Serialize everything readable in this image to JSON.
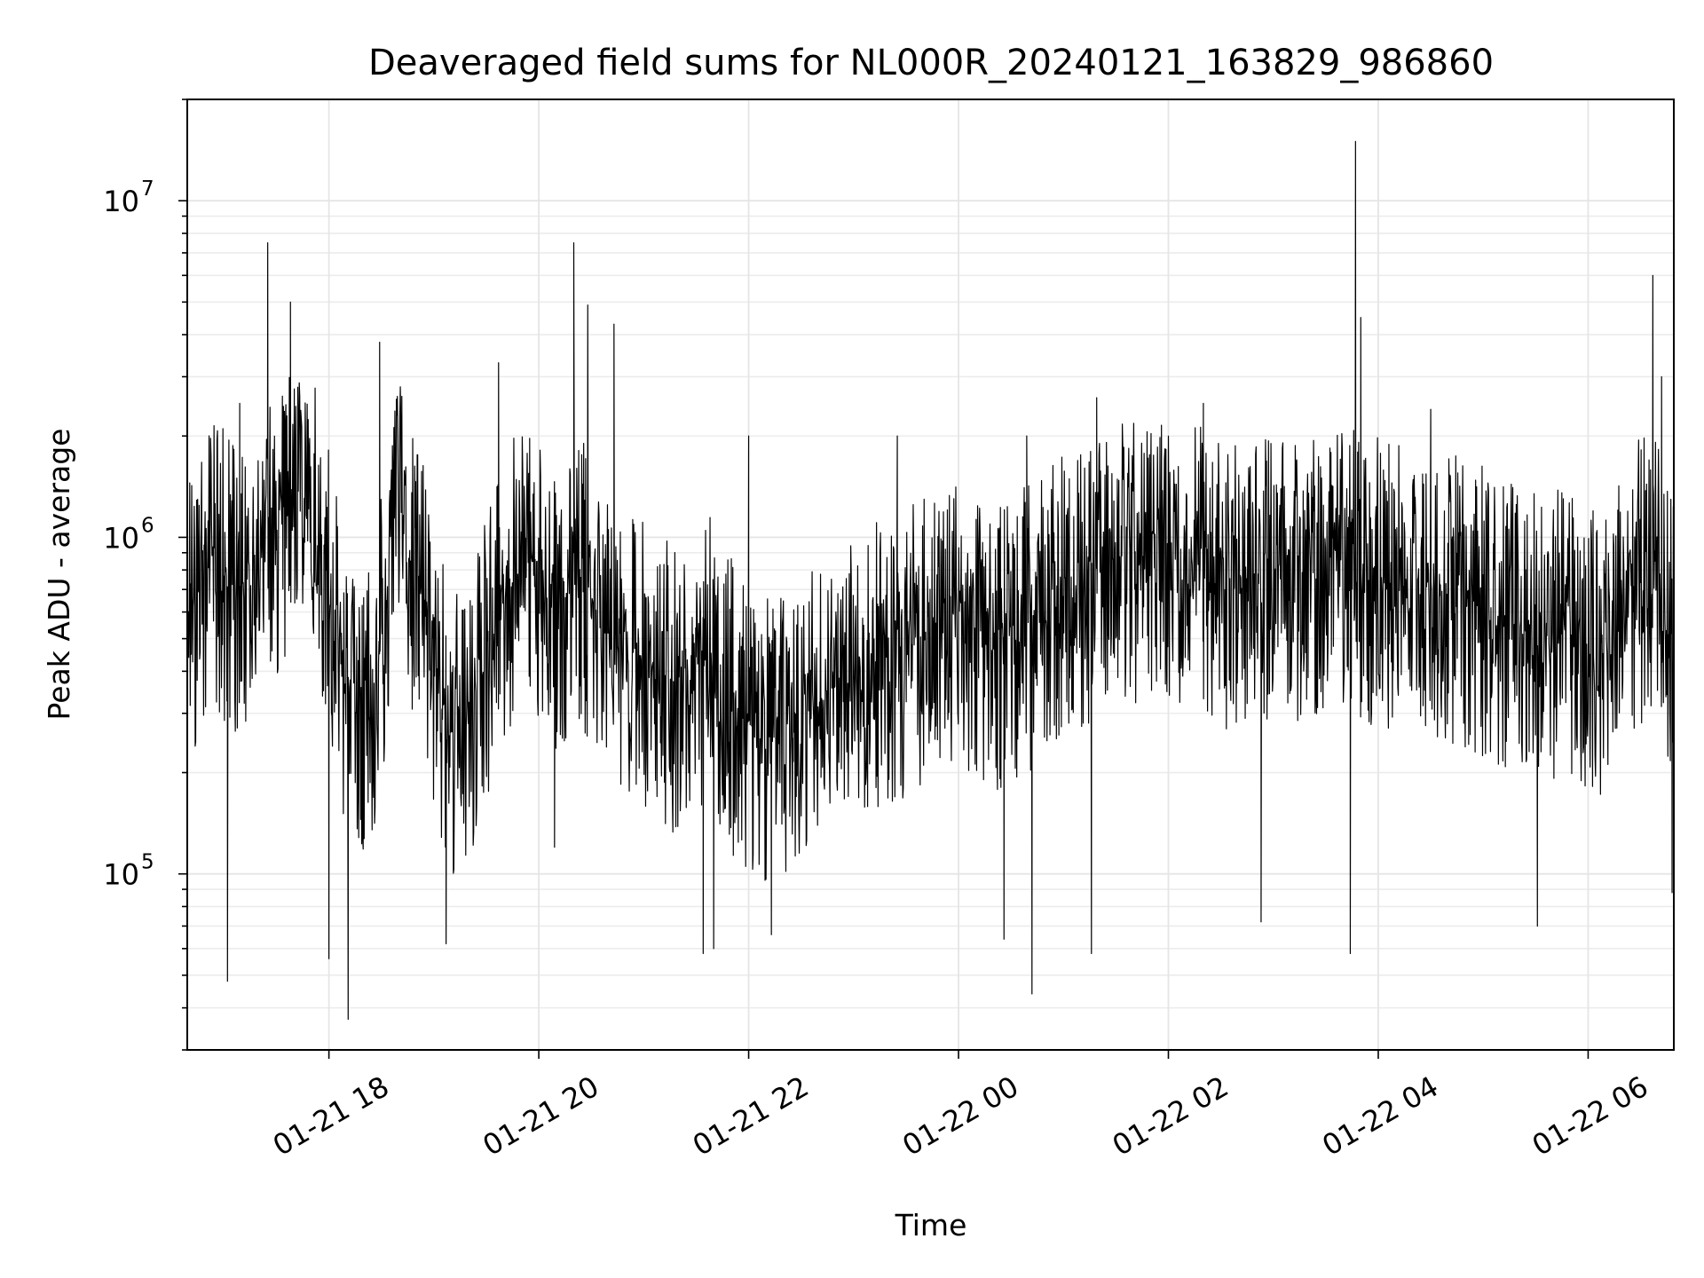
{
  "chart_data": {
    "type": "line",
    "title": "Deaveraged field sums for NL000R_20240121_163829_986860",
    "xlabel": "Time",
    "ylabel": "Peak ADU - average",
    "x_range": [
      "2024-01-21 16:39",
      "2024-01-22 06:49"
    ],
    "x_ticks": [
      {
        "time": "2024-01-21 18:00",
        "label": "01-21 18"
      },
      {
        "time": "2024-01-21 20:00",
        "label": "01-21 20"
      },
      {
        "time": "2024-01-21 22:00",
        "label": "01-21 22"
      },
      {
        "time": "2024-01-22 00:00",
        "label": "01-22 00"
      },
      {
        "time": "2024-01-22 02:00",
        "label": "01-22 02"
      },
      {
        "time": "2024-01-22 04:00",
        "label": "01-22 04"
      },
      {
        "time": "2024-01-22 06:00",
        "label": "01-22 06"
      }
    ],
    "y_scale": "log",
    "ylim": [
      30000,
      20000000
    ],
    "y_ticks": [
      {
        "value": 100000,
        "base": "10",
        "exp": "5"
      },
      {
        "value": 1000000,
        "base": "10",
        "exp": "6"
      },
      {
        "value": 10000000,
        "base": "10",
        "exp": "7"
      }
    ],
    "grid": true,
    "line_color": "#000000",
    "series": [
      {
        "points": [
          [
            "2024-01-21 16:39",
            600000
          ],
          [
            "2024-01-21 16:54",
            900000
          ],
          [
            "2024-01-21 17:09",
            700000
          ],
          [
            "2024-01-21 17:24",
            1000000
          ],
          [
            "2024-01-21 17:39",
            1300000
          ],
          [
            "2024-01-21 17:54",
            1100000
          ],
          [
            "2024-01-21 18:09",
            400000
          ],
          [
            "2024-01-21 18:24",
            300000
          ],
          [
            "2024-01-21 18:39",
            1200000
          ],
          [
            "2024-01-21 18:54",
            700000
          ],
          [
            "2024-01-21 19:09",
            250000
          ],
          [
            "2024-01-21 19:24",
            350000
          ],
          [
            "2024-01-21 19:39",
            700000
          ],
          [
            "2024-01-21 19:54",
            900000
          ],
          [
            "2024-01-21 20:09",
            600000
          ],
          [
            "2024-01-21 20:24",
            800000
          ],
          [
            "2024-01-21 20:39",
            500000
          ],
          [
            "2024-01-21 20:54",
            450000
          ],
          [
            "2024-01-21 21:09",
            400000
          ],
          [
            "2024-01-21 21:24",
            350000
          ],
          [
            "2024-01-21 21:39",
            450000
          ],
          [
            "2024-01-21 21:54",
            300000
          ],
          [
            "2024-01-21 22:09",
            250000
          ],
          [
            "2024-01-21 22:24",
            280000
          ],
          [
            "2024-01-21 22:39",
            320000
          ],
          [
            "2024-01-21 22:54",
            380000
          ],
          [
            "2024-01-21 23:09",
            420000
          ],
          [
            "2024-01-21 23:24",
            450000
          ],
          [
            "2024-01-21 23:39",
            500000
          ],
          [
            "2024-01-21 23:54",
            550000
          ],
          [
            "2024-01-22 00:09",
            550000
          ],
          [
            "2024-01-22 00:24",
            500000
          ],
          [
            "2024-01-22 00:39",
            550000
          ],
          [
            "2024-01-22 00:54",
            650000
          ],
          [
            "2024-01-22 01:09",
            700000
          ],
          [
            "2024-01-22 01:24",
            850000
          ],
          [
            "2024-01-22 01:39",
            900000
          ],
          [
            "2024-01-22 01:54",
            850000
          ],
          [
            "2024-01-22 02:09",
            850000
          ],
          [
            "2024-01-22 02:24",
            800000
          ],
          [
            "2024-01-22 02:39",
            750000
          ],
          [
            "2024-01-22 02:54",
            800000
          ],
          [
            "2024-01-22 03:09",
            750000
          ],
          [
            "2024-01-22 03:24",
            800000
          ],
          [
            "2024-01-22 03:39",
            900000
          ],
          [
            "2024-01-22 03:54",
            800000
          ],
          [
            "2024-01-22 04:09",
            750000
          ],
          [
            "2024-01-22 04:24",
            750000
          ],
          [
            "2024-01-22 04:39",
            700000
          ],
          [
            "2024-01-22 04:54",
            650000
          ],
          [
            "2024-01-22 05:09",
            600000
          ],
          [
            "2024-01-22 05:24",
            550000
          ],
          [
            "2024-01-22 05:39",
            550000
          ],
          [
            "2024-01-22 05:54",
            500000
          ],
          [
            "2024-01-22 06:09",
            450000
          ],
          [
            "2024-01-22 06:24",
            700000
          ],
          [
            "2024-01-22 06:39",
            900000
          ],
          [
            "2024-01-22 06:49",
            500000
          ]
        ],
        "peaks": [
          [
            "2024-01-21 17:09",
            2500000
          ],
          [
            "2024-01-21 17:25",
            7500000
          ],
          [
            "2024-01-21 17:38",
            5000000
          ],
          [
            "2024-01-21 18:29",
            3800000
          ],
          [
            "2024-01-21 19:37",
            3300000
          ],
          [
            "2024-01-21 20:20",
            7500000
          ],
          [
            "2024-01-21 20:28",
            4900000
          ],
          [
            "2024-01-21 20:43",
            4300000
          ],
          [
            "2024-01-21 22:00",
            2000000
          ],
          [
            "2024-01-21 23:25",
            2000000
          ],
          [
            "2024-01-22 00:39",
            2000000
          ],
          [
            "2024-01-22 01:19",
            2600000
          ],
          [
            "2024-01-22 02:20",
            2500000
          ],
          [
            "2024-01-22 03:47",
            15000000
          ],
          [
            "2024-01-22 03:50",
            4500000
          ],
          [
            "2024-01-22 04:30",
            2400000
          ],
          [
            "2024-01-22 06:37",
            6000000
          ],
          [
            "2024-01-22 06:42",
            3000000
          ]
        ],
        "troughs": [
          [
            "2024-01-21 17:02",
            48000
          ],
          [
            "2024-01-21 18:11",
            37000
          ],
          [
            "2024-01-21 18:00",
            56000
          ],
          [
            "2024-01-21 19:07",
            62000
          ],
          [
            "2024-01-21 20:09",
            120000
          ],
          [
            "2024-01-21 21:34",
            58000
          ],
          [
            "2024-01-21 21:40",
            60000
          ],
          [
            "2024-01-21 22:13",
            66000
          ],
          [
            "2024-01-22 00:26",
            64000
          ],
          [
            "2024-01-22 00:42",
            44000
          ],
          [
            "2024-01-22 01:16",
            58000
          ],
          [
            "2024-01-22 02:53",
            72000
          ],
          [
            "2024-01-22 03:44",
            58000
          ],
          [
            "2024-01-22 05:31",
            70000
          ],
          [
            "2024-01-22 06:48",
            88000
          ]
        ],
        "noise_low_factor": 0.35,
        "noise_high_factor": 2.6
      }
    ]
  }
}
